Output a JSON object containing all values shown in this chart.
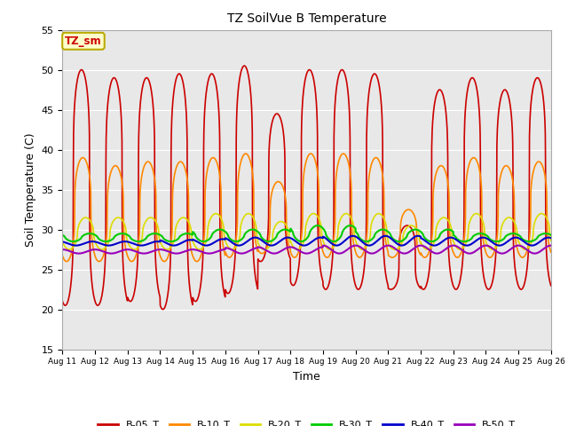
{
  "title": "TZ SoilVue B Temperature",
  "xlabel": "Time",
  "ylabel": "Soil Temperature (C)",
  "ylim": [
    15,
    55
  ],
  "x_tick_labels": [
    "Aug 11",
    "Aug 12",
    "Aug 13",
    "Aug 14",
    "Aug 15",
    "Aug 16",
    "Aug 17",
    "Aug 18",
    "Aug 19",
    "Aug 20",
    "Aug 21",
    "Aug 22",
    "Aug 23",
    "Aug 24",
    "Aug 25",
    "Aug 26"
  ],
  "annotation_text": "TZ_sm",
  "annotation_color": "#cc0000",
  "annotation_bg": "#ffffcc",
  "annotation_border": "#bbaa00",
  "background_color": "#e8e8e8",
  "grid_color": "#ffffff",
  "series": [
    {
      "name": "B-05_T",
      "color": "#cc0000",
      "linewidth": 1.2,
      "mid": 34.5,
      "amp": 14.5,
      "peak_hour": 14,
      "sharpness": 4.0,
      "trough_hour": 3,
      "day_peaks": [
        50.0,
        49.0,
        49.0,
        49.5,
        49.5,
        50.5,
        44.5,
        50.0,
        50.0,
        49.5,
        30.5,
        47.5,
        49.0,
        47.5,
        49.0
      ],
      "day_troughs": [
        20.5,
        20.5,
        21.0,
        20.0,
        21.0,
        22.0,
        26.0,
        23.0,
        22.5,
        22.5,
        22.5,
        22.5,
        22.5,
        22.5,
        22.5
      ]
    },
    {
      "name": "B-10_T",
      "color": "#ff8800",
      "linewidth": 1.2,
      "mid": 32.5,
      "amp": 6.5,
      "peak_hour": 15,
      "sharpness": 3.0,
      "day_peaks": [
        39.0,
        38.0,
        38.5,
        38.5,
        39.0,
        39.5,
        36.0,
        39.5,
        39.5,
        39.0,
        32.5,
        38.0,
        39.0,
        38.0,
        38.5
      ],
      "day_troughs": [
        26.0,
        26.0,
        26.0,
        26.0,
        26.0,
        26.5,
        27.0,
        26.5,
        26.5,
        26.5,
        26.5,
        26.5,
        26.5,
        26.5,
        26.5
      ]
    },
    {
      "name": "B-20_T",
      "color": "#dddd00",
      "linewidth": 1.2,
      "mid": 30.0,
      "amp": 2.5,
      "peak_hour": 17,
      "sharpness": 2.0,
      "day_peaks": [
        31.5,
        31.5,
        31.5,
        31.5,
        32.0,
        32.0,
        31.0,
        32.0,
        32.0,
        32.0,
        30.5,
        31.5,
        32.0,
        31.5,
        32.0
      ],
      "day_troughs": [
        27.5,
        27.5,
        27.5,
        27.5,
        27.5,
        27.5,
        27.5,
        27.5,
        27.5,
        27.5,
        27.5,
        27.5,
        27.5,
        27.5,
        27.5
      ]
    },
    {
      "name": "B-30_T",
      "color": "#00cc00",
      "linewidth": 1.5,
      "mid": 29.2,
      "amp": 0.8,
      "peak_hour": 20,
      "sharpness": 1.5,
      "day_peaks": [
        29.5,
        29.5,
        29.5,
        29.5,
        30.0,
        30.0,
        30.0,
        30.5,
        30.5,
        30.0,
        30.0,
        30.0,
        29.5,
        29.5,
        29.5
      ],
      "day_troughs": [
        28.5,
        28.5,
        28.5,
        28.5,
        28.5,
        28.5,
        28.5,
        28.5,
        28.5,
        28.5,
        28.5,
        28.5,
        28.5,
        28.5,
        28.5
      ]
    },
    {
      "name": "B-40_T",
      "color": "#0000cc",
      "linewidth": 1.5,
      "mid": 28.7,
      "amp": 0.4,
      "peak_hour": 22,
      "sharpness": 1.0,
      "day_peaks": [
        28.5,
        28.5,
        28.5,
        28.7,
        28.8,
        29.0,
        29.0,
        29.0,
        29.2,
        29.2,
        29.2,
        29.0,
        29.0,
        29.0,
        29.0
      ],
      "day_troughs": [
        28.0,
        28.0,
        28.0,
        28.0,
        28.0,
        28.0,
        28.0,
        28.0,
        28.0,
        28.0,
        28.0,
        28.0,
        28.0,
        28.0,
        28.0
      ]
    },
    {
      "name": "B-50_T",
      "color": "#9900bb",
      "linewidth": 1.5,
      "mid": 27.8,
      "amp": 0.3,
      "peak_hour": 0,
      "sharpness": 1.0,
      "day_peaks": [
        27.5,
        27.5,
        27.5,
        27.5,
        27.5,
        27.7,
        27.8,
        27.8,
        28.0,
        28.0,
        28.0,
        28.0,
        28.0,
        28.0,
        28.0
      ],
      "day_troughs": [
        27.0,
        27.0,
        27.0,
        27.0,
        27.0,
        27.0,
        27.0,
        27.0,
        27.0,
        27.0,
        27.0,
        27.0,
        27.0,
        27.0,
        27.0
      ]
    }
  ]
}
